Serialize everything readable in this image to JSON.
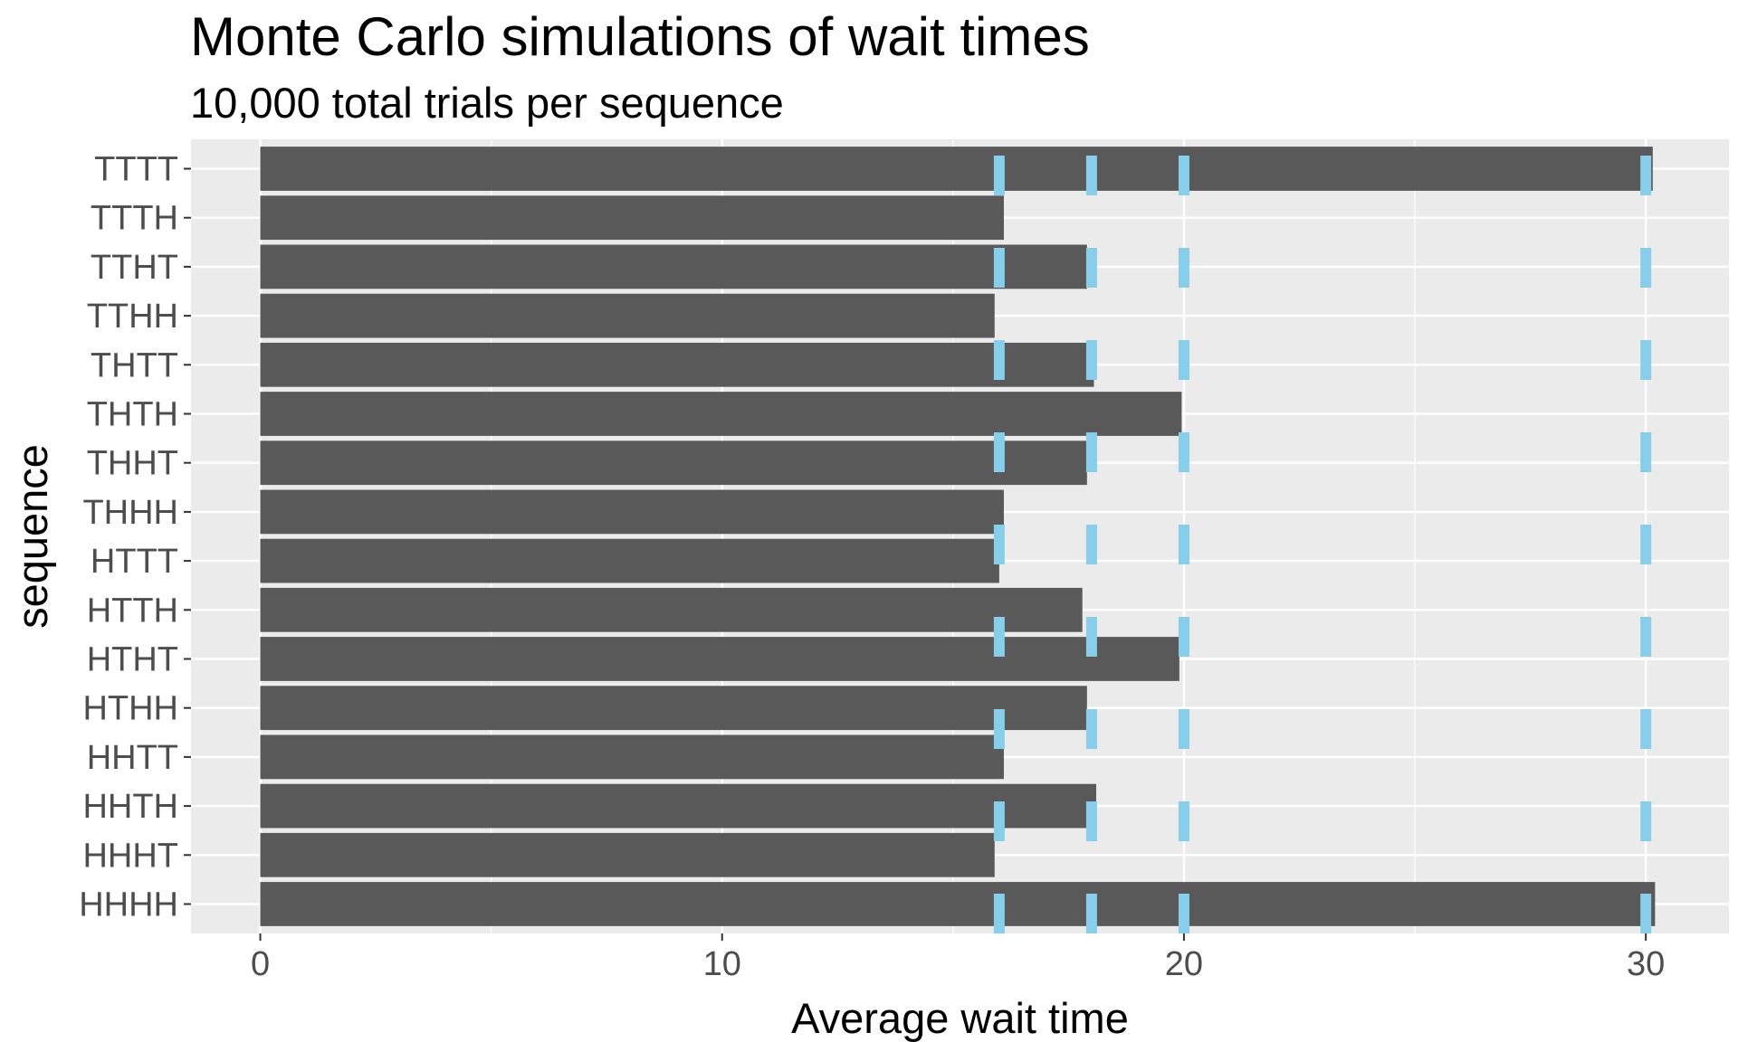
{
  "chart_data": {
    "type": "bar",
    "orientation": "horizontal",
    "title": "Monte Carlo simulations of wait times",
    "subtitle": "10,000 total trials per sequence",
    "xlabel": "Average wait time",
    "ylabel": "sequence",
    "xlim": [
      -1.5,
      31.8
    ],
    "x_ticks": [
      0,
      10,
      20,
      30
    ],
    "x_minor_ticks": [
      5,
      15,
      25
    ],
    "grid": true,
    "categories": [
      "HHHH",
      "HHHT",
      "HHTH",
      "HHTT",
      "HTHH",
      "HTHT",
      "HTTH",
      "HTTT",
      "THHH",
      "THHT",
      "THTH",
      "THTT",
      "TTHH",
      "TTHT",
      "TTTH",
      "TTTT"
    ],
    "values": [
      30.2,
      15.9,
      18.1,
      16.1,
      17.9,
      19.9,
      17.8,
      16.0,
      16.1,
      17.9,
      19.95,
      18.05,
      15.9,
      17.9,
      16.1,
      30.15
    ],
    "reference_lines": [
      16,
      18,
      20,
      30
    ],
    "colors": {
      "bar": "#595959",
      "reference_line": "#87ceeb",
      "panel_background": "#ebebeb",
      "grid": "#ffffff",
      "axis_text": "#4d4d4d"
    }
  }
}
